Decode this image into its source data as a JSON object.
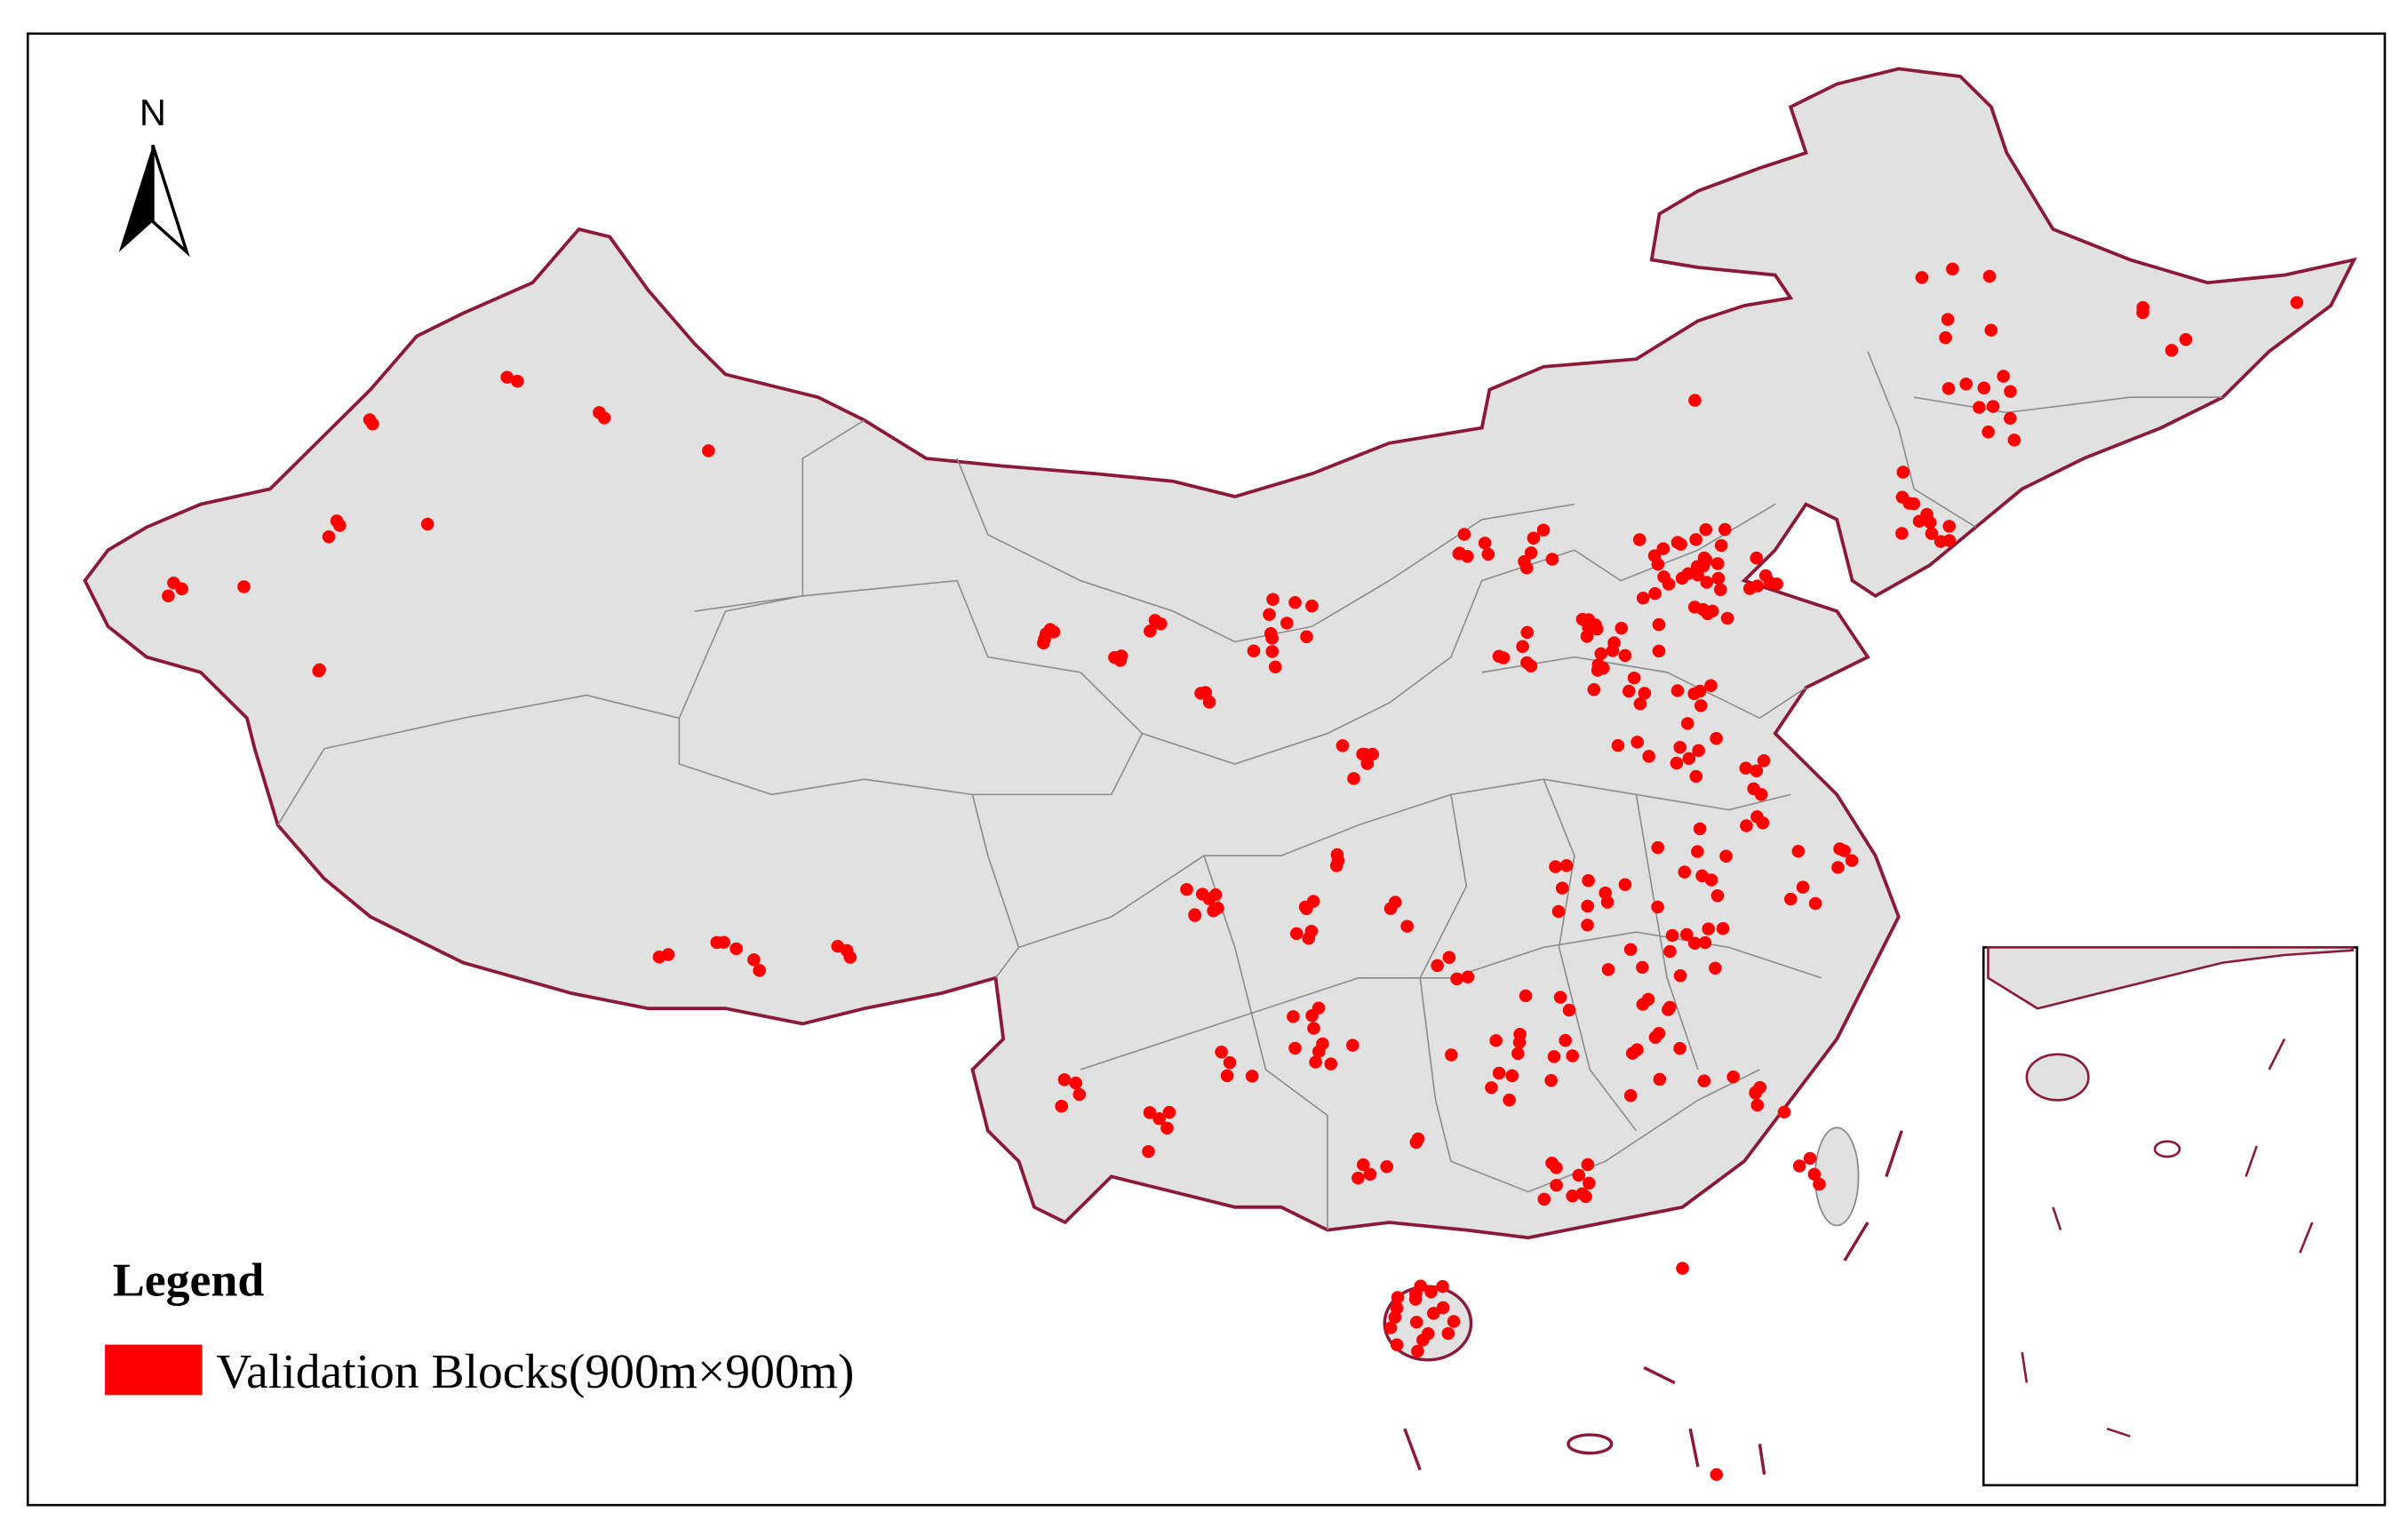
{
  "north_arrow": {
    "label": "N"
  },
  "legend": {
    "title": "Legend",
    "items": [
      {
        "label": "Validation Blocks(900m×900m)"
      }
    ]
  }
}
